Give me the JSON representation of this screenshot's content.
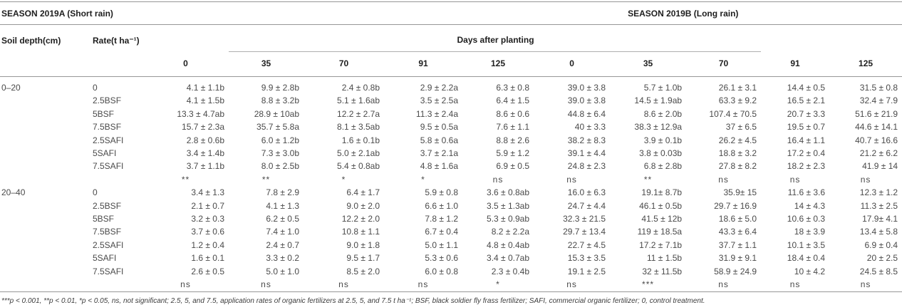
{
  "style": {
    "line_color": "#979797",
    "light_line_color": "#aeaeae",
    "header_text_color": "#1e1e1e",
    "data_text_color": "#4a4a4a"
  },
  "table": {
    "season_a": "SEASON 2019A (Short rain)",
    "season_b": "SEASON 2019B (Long rain)",
    "col1": "Soil depth(cm)",
    "col2": "Rate(t ha⁻¹)",
    "span_header": "Days after planting",
    "day_cols": [
      "0",
      "35",
      "70",
      "91",
      "125",
      "0",
      "35",
      "70",
      "91",
      "125"
    ],
    "blocks": [
      {
        "depth": "0–20",
        "rows": [
          {
            "rate": "0",
            "values": [
              "4.1 ± 1.1b",
              "9.9 ± 2.8b",
              "2.4 ± 0.8b",
              "2.9 ± 2.2a",
              "6.3 ± 0.8",
              "39.0 ± 3.8",
              "5.7 ± 1.0b",
              "26.1 ± 3.1",
              "14.4 ± 0.5",
              "31.5 ± 0.8"
            ]
          },
          {
            "rate": "2.5BSF",
            "values": [
              "4.1 ± 1.5b",
              "8.8 ± 3.2b",
              "5.1 ± 1.6ab",
              "3.5 ± 2.5a",
              "6.4 ± 1.5",
              "39.0 ± 3.8",
              "14.5 ± 1.9ab",
              "63.3 ± 9.2",
              "16.5 ± 2.1",
              "32.4 ± 7.9"
            ]
          },
          {
            "rate": "5BSF",
            "values": [
              "13.3 ± 4.7ab",
              "28.9 ± 10ab",
              "12.2 ± 2.7a",
              "11.3 ± 2.4a",
              "8.6 ± 0.6",
              "44.8 ± 6.4",
              "8.6 ± 2.0b",
              "107.4 ± 70.5",
              "20.7 ± 3.3",
              "51.6 ± 21.9"
            ]
          },
          {
            "rate": "7.5BSF",
            "values": [
              "15.7 ± 2.3a",
              "35.7 ± 5.8a",
              "8.1 ± 3.5ab",
              "9.5 ± 0.5a",
              "7.6 ± 1.1",
              "40 ± 3.3",
              "38.3 ± 12.9a",
              "37 ± 6.5",
              "19.5 ± 0.7",
              "44.6 ± 14.1"
            ]
          },
          {
            "rate": "2.5SAFI",
            "values": [
              "2.8 ± 0.6b",
              "6.0 ± 1.2b",
              "1.6 ± 0.1b",
              "5.8 ± 0.6a",
              "8.8 ± 2.6",
              "38.2 ± 8.3",
              "3.9 ± 0.1b",
              "26.2 ± 4.5",
              "16.4 ± 1.1",
              "40.7 ± 16.6"
            ]
          },
          {
            "rate": "5SAFI",
            "values": [
              "3.4 ± 1.4b",
              "7.3 ± 3.0b",
              "5.0 ± 2.1ab",
              "3.7 ± 2.1a",
              "5.9 ± 1.2",
              "39.1 ± 4.4",
              "3.8 ± 0.03b",
              "18.8 ± 3.2",
              "17.2 ± 0.4",
              "21.2 ± 6.2"
            ]
          },
          {
            "rate": "7.5SAFI",
            "values": [
              "3.7 ± 1.1b",
              "8.0 ± 2.5b",
              "5.4 ± 0.8ab",
              "4.8 ± 1.6a",
              "6.9 ± 0.5",
              "24.8 ± 2.3",
              "6.8 ± 2.8b",
              "27.8 ± 8.2",
              "18.2 ± 2.3",
              "41.9 ± 14"
            ]
          }
        ],
        "significance": [
          "**",
          "**",
          "*",
          "*",
          "ns",
          "ns",
          "**",
          "ns",
          "ns",
          "ns"
        ]
      },
      {
        "depth": "20–40",
        "rows": [
          {
            "rate": "0",
            "values": [
              "3.4 ± 1.3",
              "7.8 ± 2.9",
              "6.4 ± 1.7",
              "5.9 ± 0.8",
              "3.6 ± 0.8ab",
              "16.0 ± 6.3",
              "19.1± 8.7b",
              "35.9± 15",
              "11.6 ± 3.6",
              "12.3 ± 1.2"
            ]
          },
          {
            "rate": "2.5BSF",
            "values": [
              "2.1 ± 0.7",
              "4.1 ± 1.3",
              "9.0 ± 2.0",
              "6.6 ± 1.0",
              "3.5 ± 1.3ab",
              "24.7 ± 4.4",
              "46.1 ± 0.5b",
              "29.7 ± 16.9",
              "14 ± 4.3",
              "11.3 ± 2.5"
            ]
          },
          {
            "rate": "5BSF",
            "values": [
              "3.2 ± 0.3",
              "6.2 ± 0.5",
              "12.2 ± 2.0",
              "7.8 ± 1.2",
              "5.3 ± 0.9ab",
              "32.3 ± 21.5",
              "41.5 ± 12b",
              "18.6 ± 5.0",
              "10.6 ± 0.3",
              "17.9± 4.1"
            ]
          },
          {
            "rate": "7.5BSF",
            "values": [
              "3.7 ± 0.6",
              "7.4 ± 1.0",
              "10.8 ± 1.1",
              "6.7 ± 0.4",
              "8.2 ± 2.2a",
              "29.7 ± 13.4",
              "119 ± 18.5a",
              "43.3 ± 6.4",
              "18 ± 3.9",
              "13.4 ± 5.8"
            ]
          },
          {
            "rate": "2.5SAFI",
            "values": [
              "1.2 ± 0.4",
              "2.4 ± 0.7",
              "9.0 ± 1.8",
              "5.0 ± 1.1",
              "4.8 ± 0.4ab",
              "22.7 ± 4.5",
              "17.2 ± 7.1b",
              "37.7 ± 1.1",
              "10.1 ± 3.5",
              "6.9 ± 0.4"
            ]
          },
          {
            "rate": "5SAFI",
            "values": [
              "1.6 ± 0.1",
              "3.3 ± 0.2",
              "9.5 ± 1.7",
              "5.3 ± 0.6",
              "3.4 ± 0.7ab",
              "15.3 ± 3.5",
              "11 ± 1.5b",
              "31.9 ± 9.1",
              "18.4 ± 0.4",
              "20 ± 2.5"
            ]
          },
          {
            "rate": "7.5SAFI",
            "values": [
              "2.6 ± 0.5",
              "5.0 ± 1.0",
              "8.5 ± 2.0",
              "6.0 ± 0.8",
              "2.3 ± 0.4b",
              "19.1 ± 2.5",
              "32 ± 11.5b",
              "58.9 ± 24.9",
              "10 ± 4.2",
              "24.5 ± 8.5"
            ]
          }
        ],
        "significance": [
          "ns",
          "ns",
          "ns",
          "ns",
          "*",
          "ns",
          "***",
          "ns",
          "ns",
          "ns"
        ]
      }
    ],
    "footnote": "***p < 0.001, **p < 0.01, *p < 0.05, ns, not significant; 2.5, 5, and 7.5, application rates of organic fertilizers at 2.5, 5, and 7.5 t ha⁻¹; BSF, black soldier fly frass fertilizer; SAFI, commercial organic fertilizer; 0, control treatment."
  }
}
